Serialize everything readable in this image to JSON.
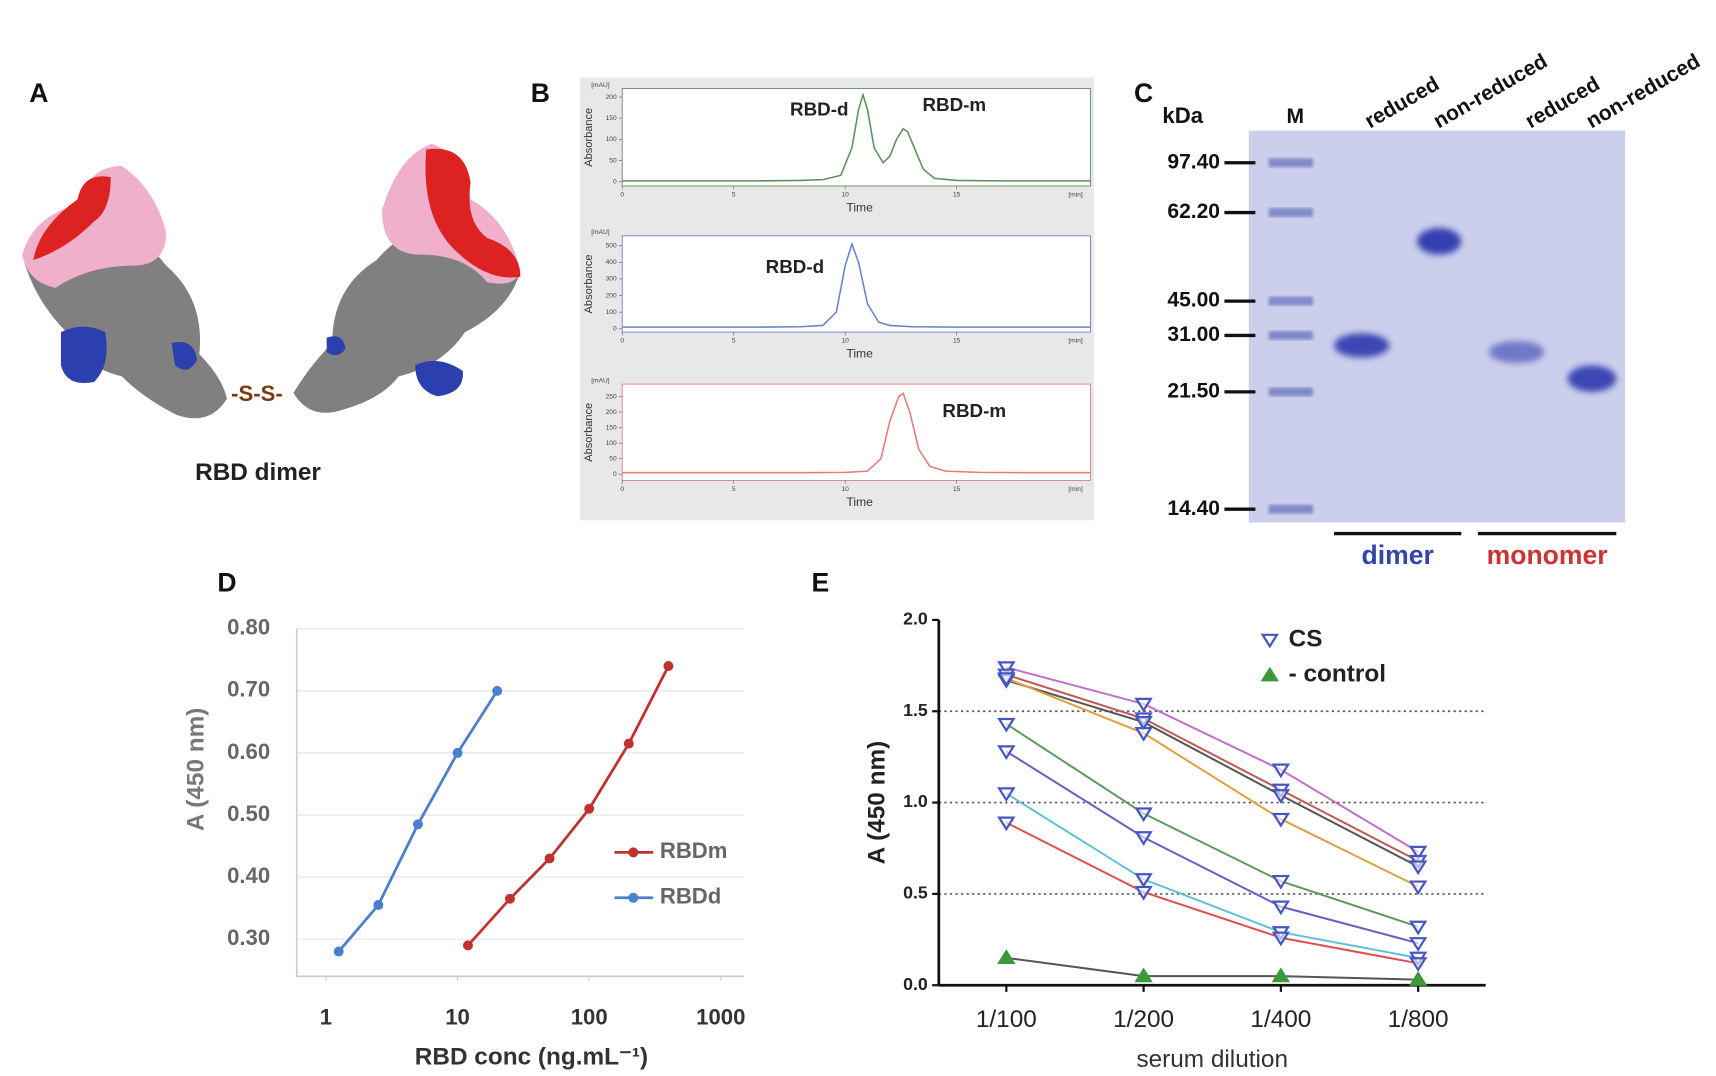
{
  "panel_labels": [
    "A",
    "B",
    "C",
    "D",
    "E"
  ],
  "structure": {
    "label": "RBD dimer",
    "bond": "-S-S-"
  },
  "gel": {
    "unit": "kDa",
    "lanes": [
      "M",
      "reduced",
      "non-reduced",
      "reduced",
      "non-reduced"
    ],
    "markers": [
      "97.40",
      "62.20",
      "45.00",
      "31.00",
      "21.50",
      "14.40"
    ],
    "groups": [
      {
        "name": "dimer",
        "color": "#3344aa"
      },
      {
        "name": "monomer",
        "color": "#cc3333"
      }
    ]
  },
  "chart_data": [
    {
      "type": "chromatogram",
      "x_label": "Time",
      "y_label": "Absorbance",
      "y_unit": "[mAU]",
      "x_unit": "[min]",
      "annotations": [
        "RBD-d",
        "RBD-m"
      ],
      "color": "#5f8f5f",
      "xlim": [
        0,
        21
      ],
      "xticks": [
        0,
        5,
        10,
        15
      ],
      "ylim": [
        -10,
        220
      ],
      "yticks": [
        0,
        50,
        100,
        150,
        200
      ],
      "x": [
        0,
        2,
        4,
        6,
        8,
        9,
        9.8,
        10.3,
        10.6,
        10.8,
        11.0,
        11.3,
        11.7,
        12.0,
        12.3,
        12.6,
        12.8,
        13.1,
        13.5,
        14,
        15,
        17,
        19,
        21
      ],
      "values": [
        2,
        2,
        2,
        2,
        3,
        5,
        15,
        80,
        170,
        205,
        170,
        80,
        45,
        60,
        100,
        125,
        118,
        80,
        30,
        8,
        3,
        2,
        2,
        2
      ]
    },
    {
      "type": "chromatogram",
      "x_label": "Time",
      "y_label": "Absorbance",
      "y_unit": "[mAU]",
      "x_unit": "[min]",
      "annotations": [
        "RBD-d"
      ],
      "color": "#6a80d0",
      "xlim": [
        0,
        21
      ],
      "xticks": [
        0,
        5,
        10,
        15
      ],
      "ylim": [
        -20,
        560
      ],
      "yticks": [
        0,
        100,
        200,
        300,
        400,
        500
      ],
      "x": [
        0,
        2,
        4,
        6,
        8,
        9,
        9.6,
        10.0,
        10.3,
        10.6,
        11.0,
        11.5,
        12,
        13,
        15,
        17,
        19,
        21
      ],
      "values": [
        10,
        10,
        10,
        10,
        12,
        20,
        100,
        380,
        510,
        400,
        150,
        40,
        20,
        12,
        10,
        10,
        10,
        10
      ]
    },
    {
      "type": "chromatogram",
      "x_label": "Time",
      "y_label": "Absorbance",
      "y_unit": "[mAU]",
      "x_unit": "[min]",
      "annotations": [
        "RBD-m"
      ],
      "color": "#e87a7a",
      "xlim": [
        0,
        21
      ],
      "xticks": [
        0,
        5,
        10,
        15
      ],
      "ylim": [
        -20,
        290
      ],
      "yticks": [
        0,
        50,
        100,
        150,
        200,
        250
      ],
      "x": [
        0,
        2,
        4,
        6,
        8,
        10,
        11,
        11.6,
        12.0,
        12.4,
        12.6,
        12.9,
        13.3,
        13.8,
        14.5,
        16,
        18,
        21
      ],
      "values": [
        5,
        5,
        5,
        5,
        5,
        6,
        10,
        50,
        170,
        250,
        260,
        200,
        80,
        25,
        10,
        6,
        5,
        5
      ]
    },
    {
      "type": "line",
      "log_x": true,
      "grid": true,
      "x_label": "RBD conc (ng.mL⁻¹)",
      "y_label": "A (450 nm)",
      "xlim": [
        0.6,
        1500
      ],
      "xticks": [
        1,
        10,
        100,
        1000
      ],
      "ylim": [
        0.24,
        0.8
      ],
      "yticks": [
        {
          "value": 0.3,
          "label": "0.30"
        },
        {
          "value": 0.4,
          "label": "0.40"
        },
        {
          "value": 0.5,
          "label": "0.50"
        },
        {
          "value": 0.6,
          "label": "0.60"
        },
        {
          "value": 0.7,
          "label": "0.70"
        },
        {
          "value": 0.8,
          "label": "0.80"
        }
      ],
      "series": [
        {
          "name": "RBDm",
          "color": "#c0322f",
          "x": [
            12,
            25,
            50,
            100,
            200,
            400
          ],
          "values": [
            0.29,
            0.365,
            0.43,
            0.51,
            0.615,
            0.74
          ]
        },
        {
          "name": "RBDd",
          "color": "#4a7fd0",
          "x": [
            1.25,
            2.5,
            5,
            10,
            20
          ],
          "values": [
            0.28,
            0.355,
            0.485,
            0.6,
            0.7
          ]
        }
      ]
    },
    {
      "type": "dilution",
      "x_label": "serum dilution",
      "y_label": "A (450 nm)",
      "categories": [
        "1/100",
        "1/200",
        "1/400",
        "1/800"
      ],
      "ylim": [
        0,
        2.0
      ],
      "yticks": [
        {
          "value": 0,
          "label": "0.0"
        },
        0.5,
        {
          "value": 1,
          "label": "1.0"
        },
        1.5,
        {
          "value": 2,
          "label": "2.0"
        }
      ],
      "series": [
        {
          "name": "CS",
          "marker": "down",
          "marker_color": "#4656c0",
          "lines": [
            {
              "color": "#c070c8",
              "values": [
                1.74,
                1.54,
                1.18,
                0.73
              ]
            },
            {
              "color": "#c05858",
              "values": [
                1.7,
                1.46,
                1.07,
                0.68
              ]
            },
            {
              "color": "#555555",
              "values": [
                1.67,
                1.44,
                1.04,
                0.65
              ]
            },
            {
              "color": "#e0a040",
              "values": [
                1.68,
                1.38,
                0.91,
                0.54
              ]
            },
            {
              "color": "#5a9a5a",
              "values": [
                1.43,
                0.94,
                0.57,
                0.32
              ]
            },
            {
              "color": "#6a5fc0",
              "values": [
                1.28,
                0.81,
                0.43,
                0.23
              ]
            },
            {
              "color": "#60c0d8",
              "values": [
                1.05,
                0.58,
                0.29,
                0.15
              ]
            },
            {
              "color": "#e05050",
              "values": [
                0.89,
                0.51,
                0.26,
                0.12
              ]
            }
          ]
        },
        {
          "name": "- control",
          "marker": "up",
          "marker_color": "#3a9a3a",
          "lines": [
            {
              "color": "#555555",
              "values": [
                0.15,
                0.05,
                0.05,
                0.03
              ]
            }
          ]
        }
      ]
    }
  ]
}
